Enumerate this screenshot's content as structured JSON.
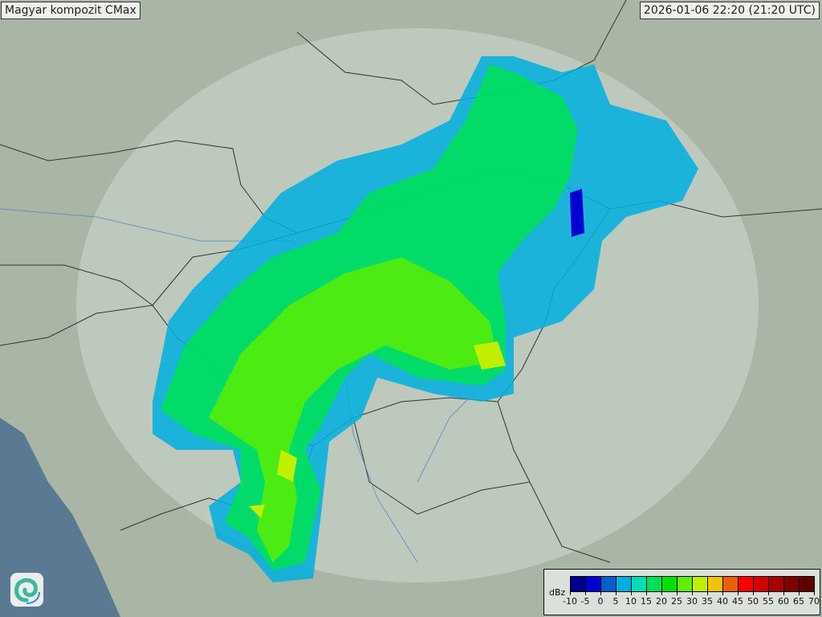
{
  "header": {
    "product_title": "Magyar kompozit  CMax",
    "timestamp": "2026-01-06 22:20 (21:20 UTC)"
  },
  "legend": {
    "unit": "dBz",
    "tick_labels": [
      "-10",
      "-5",
      "0",
      "5",
      "10",
      "15",
      "20",
      "25",
      "30",
      "35",
      "40",
      "45",
      "50",
      "55",
      "60",
      "65",
      "70"
    ],
    "colors": [
      "#00008f",
      "#0000d0",
      "#005fd0",
      "#00afe0",
      "#00dfb4",
      "#00df5a",
      "#00e000",
      "#5fef00",
      "#c0ef00",
      "#f0c500",
      "#f06000",
      "#ff0000",
      "#d00000",
      "#a80000",
      "#800000",
      "#600000"
    ]
  },
  "logo": {
    "icon": "swirl-logo-icon"
  },
  "colors": {
    "land": "#a9b5a5",
    "coverage": "#c4d0c8",
    "sea": "#5a7a94",
    "border": "#333333",
    "river": "#4a7ccf"
  }
}
